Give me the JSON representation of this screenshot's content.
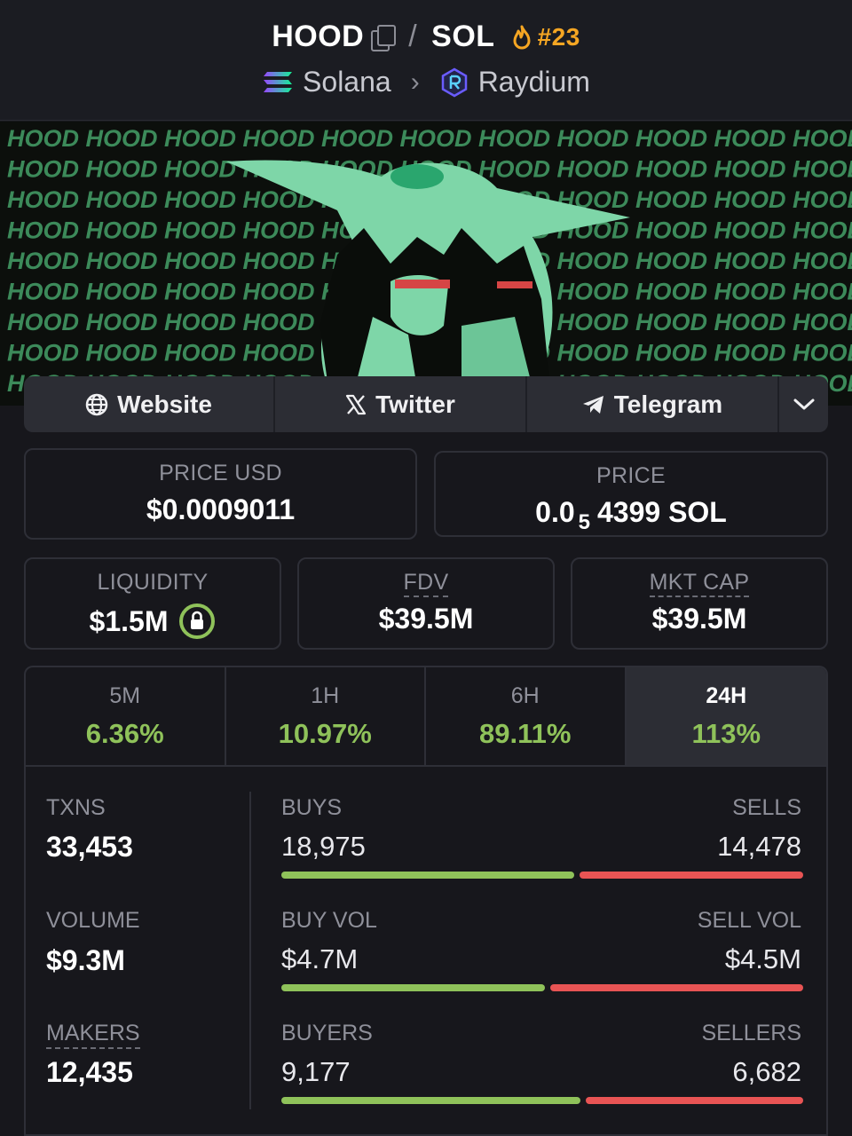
{
  "header": {
    "base_token": "HOOD",
    "separator": "/",
    "quote_token": "SOL",
    "rank": "#23",
    "chain": "Solana",
    "dex": "Raydium"
  },
  "links": {
    "website": "Website",
    "twitter": "Twitter",
    "telegram": "Telegram"
  },
  "price_usd": {
    "label": "PRICE USD",
    "value": "$0.0009011"
  },
  "price_native": {
    "label": "PRICE",
    "prefix": "0.0",
    "subscript": "5",
    "digits": "4399",
    "unit": "SOL"
  },
  "liquidity": {
    "label": "LIQUIDITY",
    "value": "$1.5M"
  },
  "fdv": {
    "label": "FDV",
    "value": "$39.5M"
  },
  "mkt_cap": {
    "label": "MKT CAP",
    "value": "$39.5M"
  },
  "periods": [
    {
      "label": "5M",
      "change": "6.36%"
    },
    {
      "label": "1H",
      "change": "10.97%"
    },
    {
      "label": "6H",
      "change": "89.11%"
    },
    {
      "label": "24H",
      "change": "113%"
    }
  ],
  "stats": {
    "txns": {
      "label": "TXNS",
      "value": "33,453"
    },
    "volume": {
      "label": "VOLUME",
      "value": "$9.3M"
    },
    "makers": {
      "label": "MAKERS",
      "value": "12,435"
    },
    "buys": {
      "label": "BUYS",
      "value": "18,975",
      "share": 0.567
    },
    "sells": {
      "label": "SELLS",
      "value": "14,478"
    },
    "buy_vol": {
      "label": "BUY VOL",
      "value": "$4.7M",
      "share": 0.511
    },
    "sell_vol": {
      "label": "SELL VOL",
      "value": "$4.5M"
    },
    "buyers": {
      "label": "BUYERS",
      "value": "9,177",
      "share": 0.579
    },
    "sellers": {
      "label": "SELLERS",
      "value": "6,682"
    }
  },
  "colors": {
    "positive": "#8fc25a",
    "negative": "#e85454",
    "rank": "#f5a623"
  },
  "banner_text": "HOOD"
}
